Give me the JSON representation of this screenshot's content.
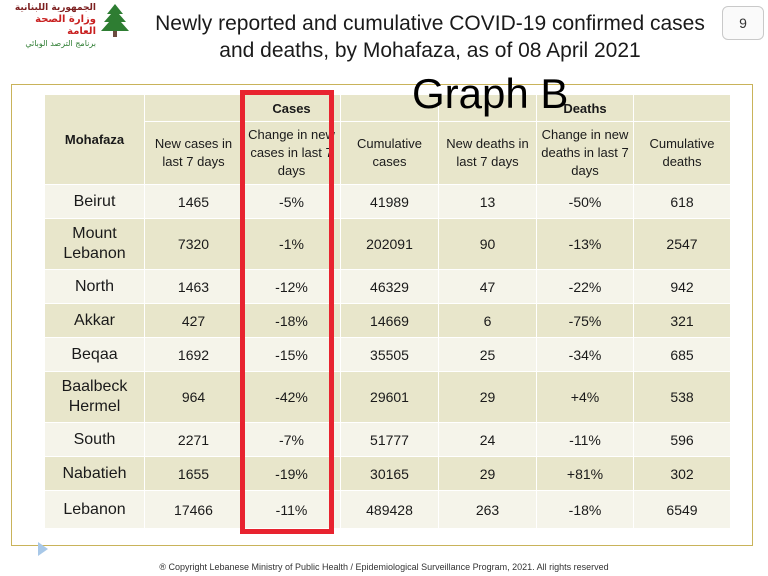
{
  "logo": {
    "line1": "الجمهورية اللبنانية",
    "line2": "وزارة الصحة العامة",
    "line3": "برنامج الترصد الوبائي"
  },
  "title_line1": "Newly reported and cumulative COVID-19 confirmed cases",
  "title_line2": "and deaths, by Mohafaza, as of 08 April 2021",
  "slide_number": "9",
  "graph_label": "Graph B",
  "table": {
    "group_headers": {
      "mohafaza": "Mohafaza",
      "cases": "Cases",
      "deaths": "Deaths"
    },
    "columns": [
      "New cases in last 7 days",
      "Change in new cases in last 7 days",
      "Cumulative cases",
      "New deaths in last 7 days",
      "Change in new deaths in last 7 days",
      "Cumulative deaths"
    ],
    "rows": [
      {
        "name": "Beirut",
        "new_cases": "1465",
        "change_cases": "-5%",
        "cum_cases": "41989",
        "new_deaths": "13",
        "change_deaths": "-50%",
        "cum_deaths": "618"
      },
      {
        "name": "Mount Lebanon",
        "new_cases": "7320",
        "change_cases": "-1%",
        "cum_cases": "202091",
        "new_deaths": "90",
        "change_deaths": "-13%",
        "cum_deaths": "2547"
      },
      {
        "name": "North",
        "new_cases": "1463",
        "change_cases": "-12%",
        "cum_cases": "46329",
        "new_deaths": "47",
        "change_deaths": "-22%",
        "cum_deaths": "942"
      },
      {
        "name": "Akkar",
        "new_cases": "427",
        "change_cases": "-18%",
        "cum_cases": "14669",
        "new_deaths": "6",
        "change_deaths": "-75%",
        "cum_deaths": "321"
      },
      {
        "name": "Beqaa",
        "new_cases": "1692",
        "change_cases": "-15%",
        "cum_cases": "35505",
        "new_deaths": "25",
        "change_deaths": "-34%",
        "cum_deaths": "685"
      },
      {
        "name": "Baalbeck Hermel",
        "new_cases": "964",
        "change_cases": "-42%",
        "cum_cases": "29601",
        "new_deaths": "29",
        "change_deaths": "+4%",
        "cum_deaths": "538"
      },
      {
        "name": "South",
        "new_cases": "2271",
        "change_cases": "-7%",
        "cum_cases": "51777",
        "new_deaths": "24",
        "change_deaths": "-11%",
        "cum_deaths": "596"
      },
      {
        "name": "Nabatieh",
        "new_cases": "1655",
        "change_cases": "-19%",
        "cum_cases": "30165",
        "new_deaths": "29",
        "change_deaths": "+81%",
        "cum_deaths": "302"
      },
      {
        "name": "Lebanon",
        "new_cases": "17466",
        "change_cases": "-11%",
        "cum_cases": "489428",
        "new_deaths": "263",
        "change_deaths": "-18%",
        "cum_deaths": "6549"
      }
    ]
  },
  "footer": "® Copyright Lebanese Ministry of Public Health / Epidemiological Surveillance Program, 2021. All rights reserved",
  "colors": {
    "header_bg": "#e8e6cb",
    "row_alt_bg": "#f5f4ea",
    "highlight_box": "#e8232f",
    "positive_change": "#c0392b",
    "frame_border": "#c9b35a"
  }
}
